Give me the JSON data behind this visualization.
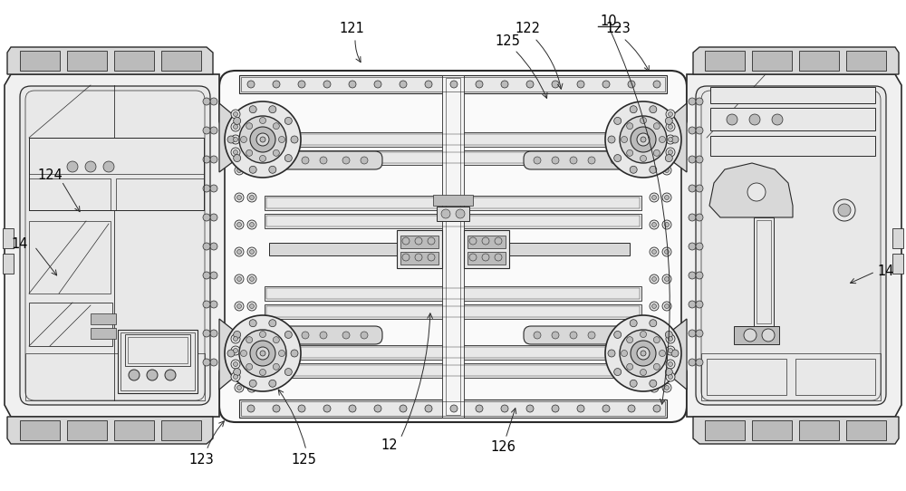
{
  "bg_color": "#ffffff",
  "lc": "#2a2a2a",
  "fl": "#f0f0f0",
  "fm": "#d8d8d8",
  "fd": "#bbbbbb",
  "fw": "#e8e8e8"
}
